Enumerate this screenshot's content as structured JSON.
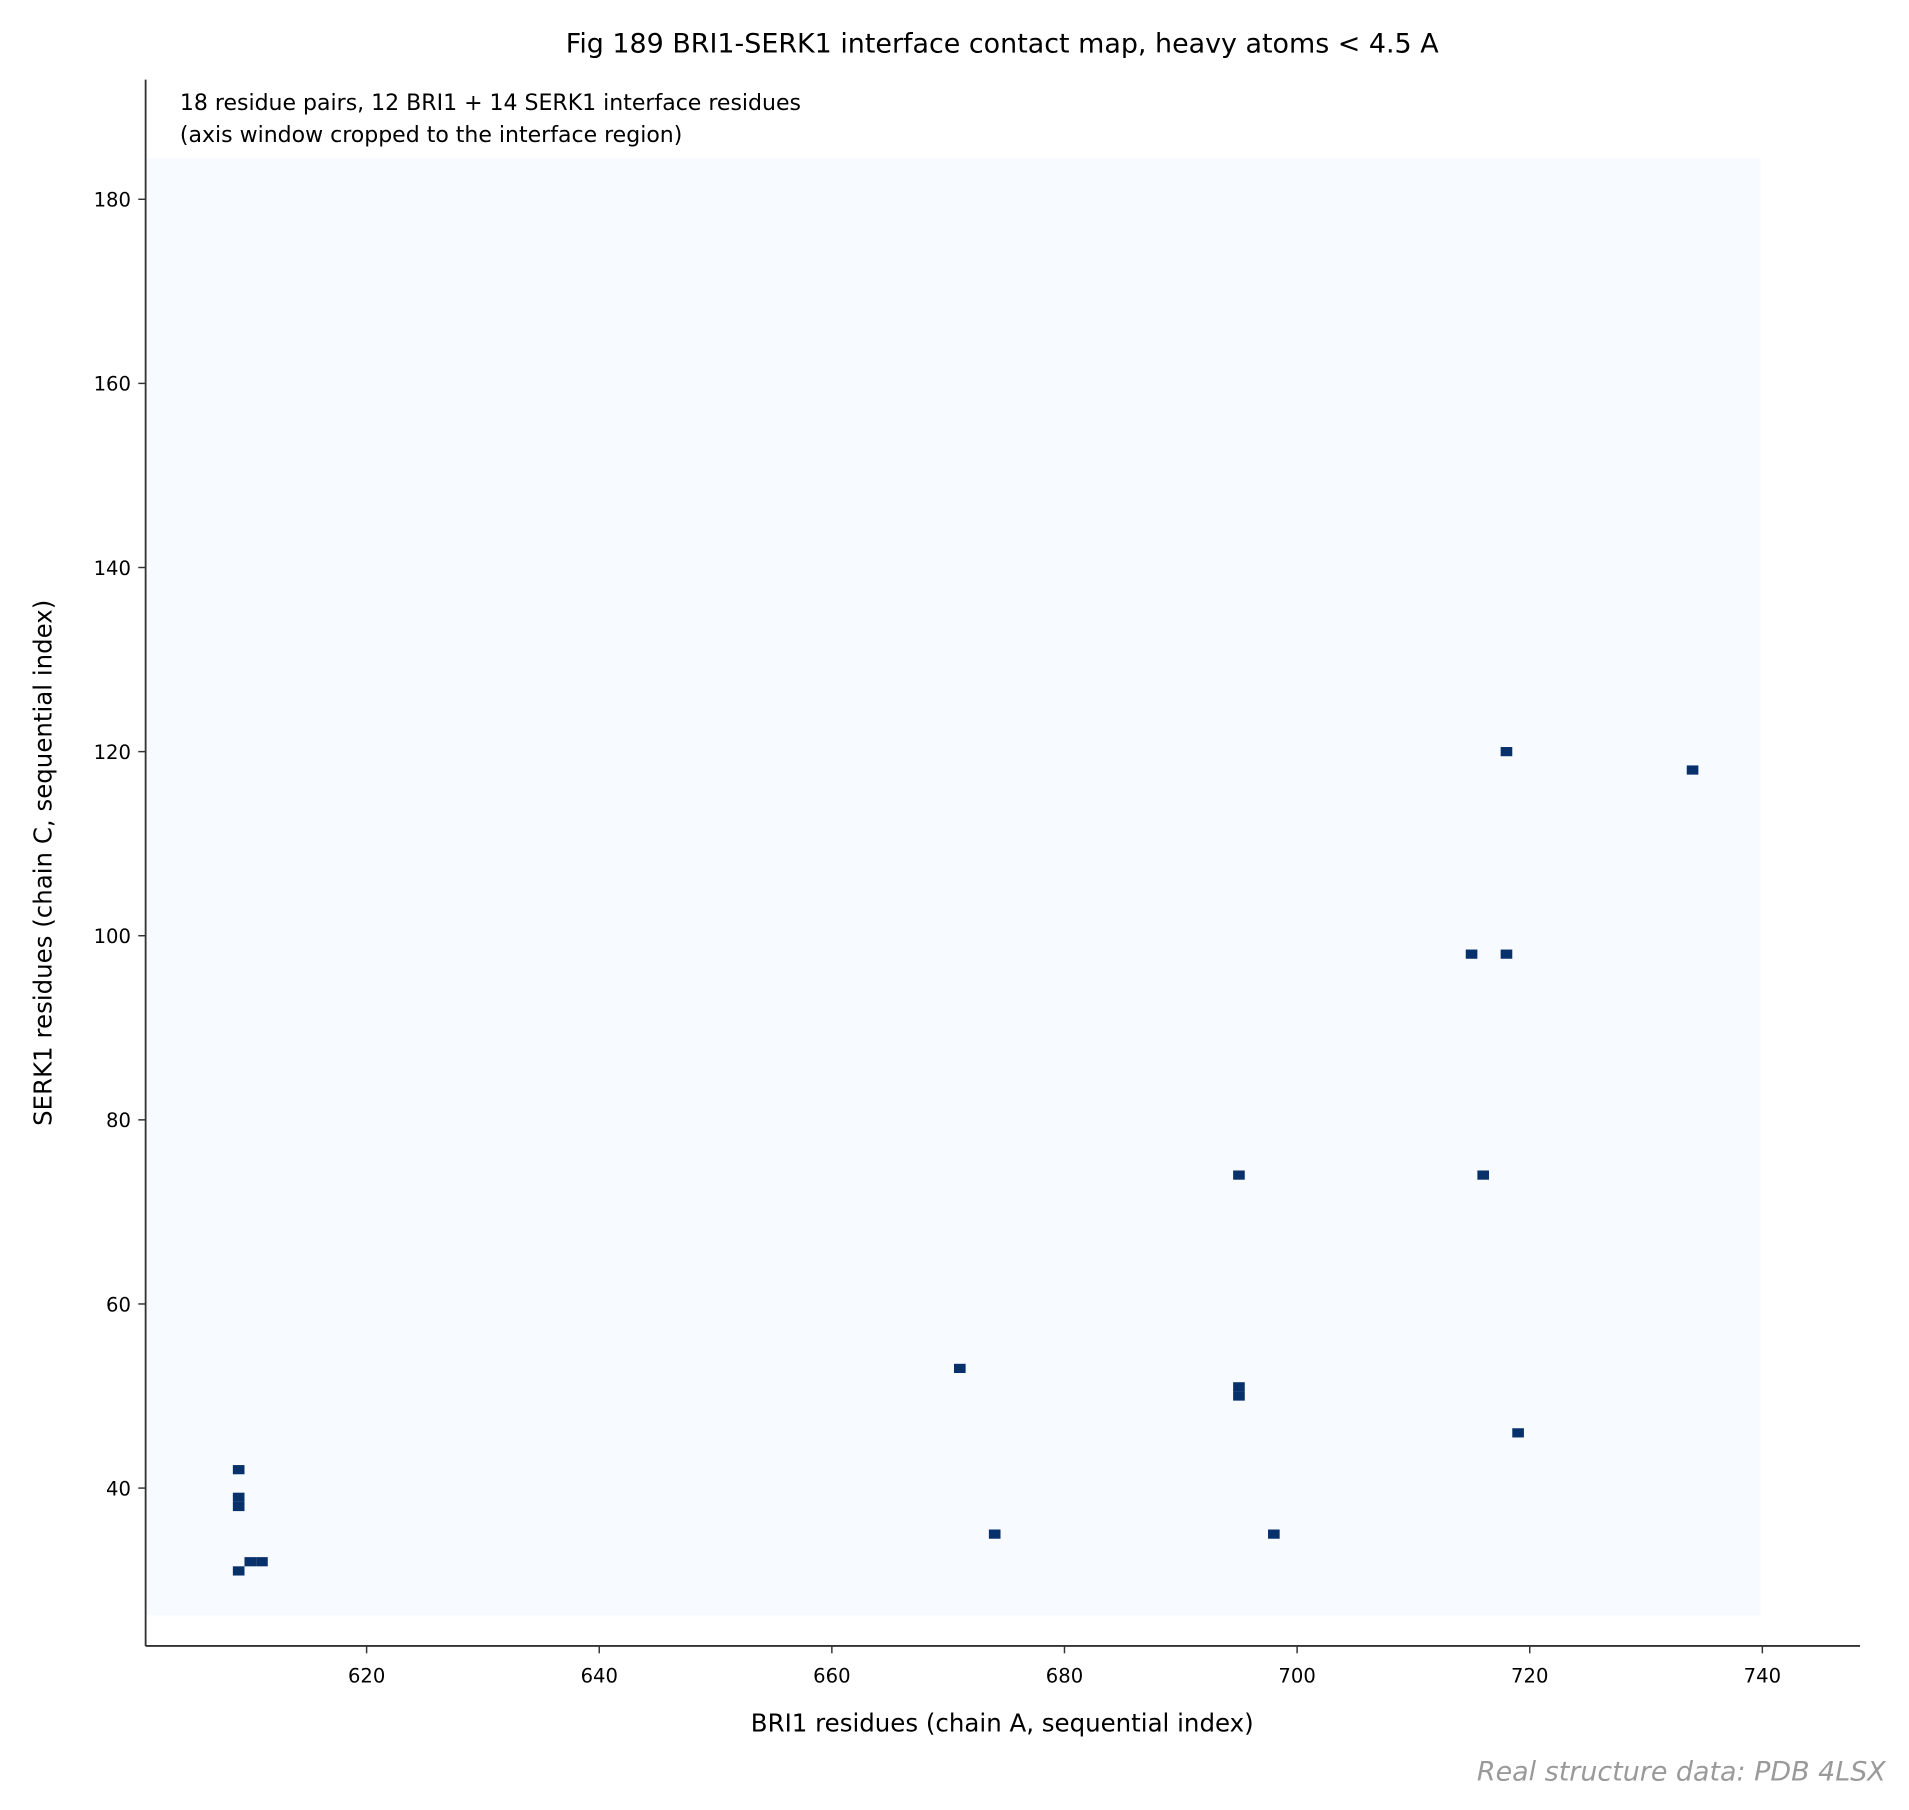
{
  "chart_data": {
    "type": "heatmap",
    "title": "Fig 189  BRI1-SERK1 interface contact map, heavy atoms < 4.5 A",
    "annotation": [
      "18 residue pairs, 12 BRI1 + 14 SERK1 interface residues",
      "(axis window cropped to the interface region)"
    ],
    "xlabel": "BRI1 residues (chain A, sequential index)",
    "ylabel": "SERK1 residues (chain C, sequential index)",
    "footnote": "Real structure data: PDB 4LSX",
    "x": [
      609,
      610,
      611,
      609,
      609,
      609,
      671,
      674,
      695,
      695,
      695,
      698,
      716,
      715,
      718,
      718,
      719,
      734
    ],
    "y": [
      31,
      32,
      32,
      38,
      39,
      42,
      53,
      35,
      50,
      51,
      74,
      35,
      74,
      98,
      98,
      120,
      46,
      118
    ],
    "color": "#08306b",
    "background": "#f7fbff",
    "xlim": [
      601,
      748.4
    ],
    "ylim": [
      22.85,
      193
    ],
    "xticks": [
      620,
      640,
      660,
      680,
      700,
      720,
      740
    ],
    "yticks": [
      40,
      60,
      80,
      100,
      120,
      140,
      160,
      180
    ]
  }
}
